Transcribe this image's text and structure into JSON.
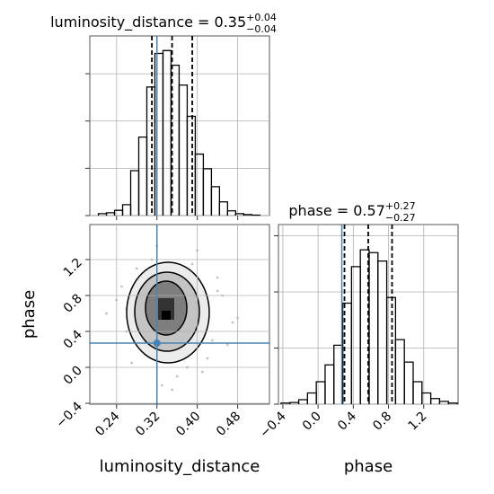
{
  "chart_data": [
    {
      "type": "histogram",
      "title": {
        "text": "luminosity_distance = 0.35",
        "upper": "+0.04",
        "lower": "−0.04"
      },
      "bins": [
        0.204,
        0.22,
        0.236,
        0.252,
        0.268,
        0.284,
        0.3,
        0.316,
        0.332,
        0.348,
        0.364,
        0.38,
        0.396,
        0.412,
        0.428,
        0.444,
        0.46,
        0.476,
        0.492,
        0.508,
        0.524
      ],
      "values": [
        0.04,
        0.06,
        0.11,
        0.23,
        0.95,
        1.66,
        2.72,
        3.43,
        3.49,
        3.18,
        2.76,
        2.1,
        1.3,
        0.99,
        0.61,
        0.29,
        0.1,
        0.04,
        0.02,
        0.01
      ],
      "color": "#000000",
      "xlim": [
        0.187,
        0.543
      ],
      "ylim": [
        0,
        3.8
      ],
      "yticks": [
        0,
        1,
        2,
        3
      ],
      "quantiles": [
        0.31,
        0.35,
        0.39
      ],
      "grid": true
    },
    {
      "type": "scatter",
      "x_label": "luminosity_distance",
      "y_label": "phase",
      "xlim": [
        0.187,
        0.543
      ],
      "ylim": [
        -0.41,
        1.59
      ],
      "xticks": [
        0.24,
        0.32,
        {
          "value": 0.4,
          "label": "0.40"
        },
        0.48
      ],
      "yticks": [
        {
          "value": -0.4,
          "label": "−0.4"
        },
        {
          "value": 0,
          "label": "0.0"
        },
        0.4,
        0.8,
        1.2
      ],
      "x": [
        0.25,
        0.28,
        0.3,
        0.42,
        0.44,
        0.47,
        0.26,
        0.4,
        0.33,
        0.38,
        0.22,
        0.45,
        0.29,
        0.36,
        0.31,
        0.43,
        0.27,
        0.39,
        0.34,
        0.48,
        0.24,
        0.41,
        0.37,
        0.3,
        0.46,
        0.32,
        0.28,
        0.44,
        0.35,
        0.26
      ],
      "y": [
        0.9,
        1.1,
        0.2,
        0.1,
        1.0,
        0.5,
        0.4,
        1.3,
        -0.2,
        0.0,
        0.6,
        0.8,
        0.7,
        -0.1,
        1.2,
        0.3,
        0.05,
        1.15,
        0.95,
        0.55,
        0.75,
        -0.05,
        0.15,
        1.05,
        0.25,
        1.35,
        0.45,
        0.85,
        -0.25,
        0.65
      ],
      "color": "#9a9a9a",
      "truth": {
        "x": 0.32,
        "y": 0.27
      },
      "truth_color": "#4682b4",
      "grid": true
    },
    {
      "type": "histogram",
      "title": {
        "text": "phase = 0.57",
        "upper": "+0.27",
        "lower": "−0.27"
      },
      "x_label": "phase",
      "bins": [
        -0.42,
        -0.32,
        -0.22,
        -0.12,
        -0.02,
        0.08,
        0.18,
        0.28,
        0.38,
        0.48,
        0.58,
        0.68,
        0.78,
        0.88,
        0.98,
        1.08,
        1.18,
        1.28,
        1.38,
        1.48,
        1.58
      ],
      "values": [
        0.02,
        0.03,
        0.08,
        0.2,
        0.4,
        0.7,
        1.05,
        1.8,
        2.45,
        2.75,
        2.7,
        2.55,
        1.9,
        1.15,
        0.75,
        0.4,
        0.2,
        0.1,
        0.05,
        0.02
      ],
      "color": "#000000",
      "xlim": [
        -0.45,
        1.59
      ],
      "ylim": [
        0,
        3.2
      ],
      "xticks": [
        {
          "value": -0.4,
          "label": "−0.4"
        },
        {
          "value": 0,
          "label": "0.0"
        },
        0.4,
        0.8,
        1.2
      ],
      "yticks": [
        0,
        1,
        2,
        3
      ],
      "quantiles": [
        0.3,
        0.57,
        0.84
      ],
      "grid": true
    }
  ]
}
